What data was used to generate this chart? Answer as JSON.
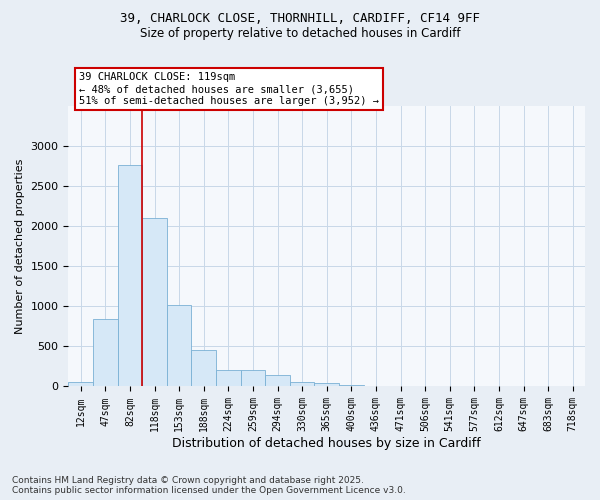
{
  "title_line1": "39, CHARLOCK CLOSE, THORNHILL, CARDIFF, CF14 9FF",
  "title_line2": "Size of property relative to detached houses in Cardiff",
  "xlabel": "Distribution of detached houses by size in Cardiff",
  "ylabel": "Number of detached properties",
  "bar_labels": [
    "12sqm",
    "47sqm",
    "82sqm",
    "118sqm",
    "153sqm",
    "188sqm",
    "224sqm",
    "259sqm",
    "294sqm",
    "330sqm",
    "365sqm",
    "400sqm",
    "436sqm",
    "471sqm",
    "506sqm",
    "541sqm",
    "577sqm",
    "612sqm",
    "647sqm",
    "683sqm",
    "718sqm"
  ],
  "bar_values": [
    50,
    840,
    2760,
    2100,
    1020,
    450,
    210,
    210,
    140,
    60,
    40,
    20,
    10,
    5,
    3,
    2,
    1,
    1,
    1,
    1,
    1
  ],
  "bar_color": "#d6e8f7",
  "bar_edge_color": "#7ab0d4",
  "highlight_bar_index": 3,
  "annotation_text": "39 CHARLOCK CLOSE: 119sqm\n← 48% of detached houses are smaller (3,655)\n51% of semi-detached houses are larger (3,952) →",
  "annotation_box_color": "#ffffff",
  "annotation_box_edge_color": "#cc0000",
  "vline_color": "#cc0000",
  "ylim": [
    0,
    3500
  ],
  "yticks": [
    0,
    500,
    1000,
    1500,
    2000,
    2500,
    3000
  ],
  "footer_line1": "Contains HM Land Registry data © Crown copyright and database right 2025.",
  "footer_line2": "Contains public sector information licensed under the Open Government Licence v3.0.",
  "bg_color": "#e8eef5",
  "plot_bg_color": "#f5f8fc",
  "grid_color": "#c8d8e8"
}
